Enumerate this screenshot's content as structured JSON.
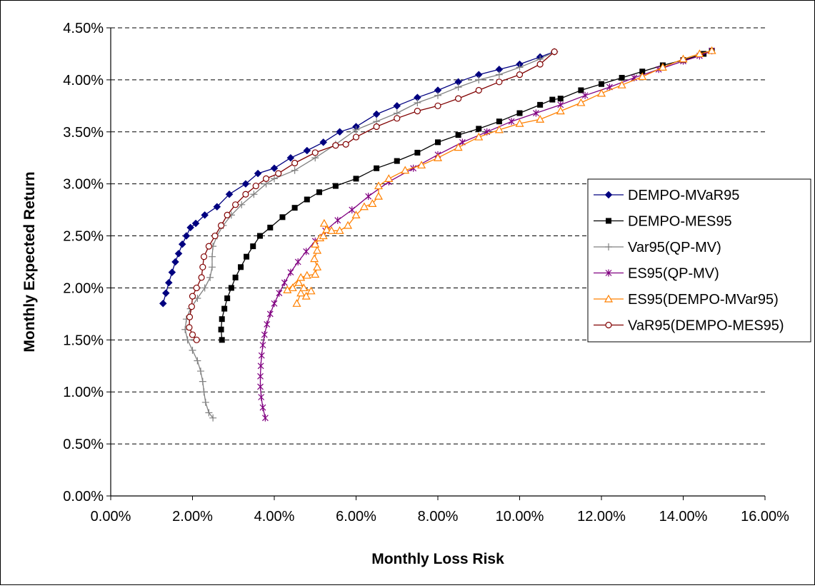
{
  "chart_data": {
    "type": "line",
    "title": "",
    "xlabel": "Monthly Loss Risk",
    "ylabel": "Monthly Expected Return",
    "xlim": [
      0,
      0.16
    ],
    "ylim": [
      0,
      0.045
    ],
    "x_ticks": [
      {
        "value": 0.0,
        "label": "0.00%"
      },
      {
        "value": 0.02,
        "label": "2.00%"
      },
      {
        "value": 0.04,
        "label": "4.00%"
      },
      {
        "value": 0.06,
        "label": "6.00%"
      },
      {
        "value": 0.08,
        "label": "8.00%"
      },
      {
        "value": 0.1,
        "label": "10.00%"
      },
      {
        "value": 0.12,
        "label": "12.00%"
      },
      {
        "value": 0.14,
        "label": "14.00%"
      },
      {
        "value": 0.16,
        "label": "16.00%"
      }
    ],
    "y_ticks": [
      {
        "value": 0.0,
        "label": "0.00%"
      },
      {
        "value": 0.005,
        "label": "0.50%"
      },
      {
        "value": 0.01,
        "label": "1.00%"
      },
      {
        "value": 0.015,
        "label": "1.50%"
      },
      {
        "value": 0.02,
        "label": "2.00%"
      },
      {
        "value": 0.025,
        "label": "2.50%"
      },
      {
        "value": 0.03,
        "label": "3.00%"
      },
      {
        "value": 0.035,
        "label": "3.50%"
      },
      {
        "value": 0.04,
        "label": "4.00%"
      },
      {
        "value": 0.045,
        "label": "4.50%"
      }
    ],
    "grid": "horizontal-dashed",
    "legend_position": "right",
    "series": [
      {
        "name": "DEMPO-MVaR95",
        "color": "#000080",
        "marker": "diamond",
        "points": [
          [
            0.0128,
            0.0185
          ],
          [
            0.0135,
            0.0195
          ],
          [
            0.0142,
            0.0205
          ],
          [
            0.015,
            0.0215
          ],
          [
            0.0158,
            0.0225
          ],
          [
            0.0166,
            0.0233
          ],
          [
            0.0175,
            0.0242
          ],
          [
            0.0185,
            0.025
          ],
          [
            0.0195,
            0.0258
          ],
          [
            0.0208,
            0.0262
          ],
          [
            0.023,
            0.027
          ],
          [
            0.026,
            0.0278
          ],
          [
            0.029,
            0.029
          ],
          [
            0.033,
            0.03
          ],
          [
            0.036,
            0.031
          ],
          [
            0.04,
            0.0315
          ],
          [
            0.044,
            0.0325
          ],
          [
            0.048,
            0.0332
          ],
          [
            0.052,
            0.034
          ],
          [
            0.056,
            0.035
          ],
          [
            0.06,
            0.0355
          ],
          [
            0.065,
            0.0367
          ],
          [
            0.07,
            0.0375
          ],
          [
            0.075,
            0.0383
          ],
          [
            0.08,
            0.039
          ],
          [
            0.085,
            0.0398
          ],
          [
            0.09,
            0.0405
          ],
          [
            0.095,
            0.041
          ],
          [
            0.1,
            0.0415
          ],
          [
            0.105,
            0.0422
          ],
          [
            0.1085,
            0.0427
          ]
        ]
      },
      {
        "name": "DEMPO-MES95",
        "color": "#000000",
        "marker": "square",
        "points": [
          [
            0.0272,
            0.015
          ],
          [
            0.027,
            0.016
          ],
          [
            0.0272,
            0.017
          ],
          [
            0.0278,
            0.018
          ],
          [
            0.0285,
            0.019
          ],
          [
            0.0295,
            0.02
          ],
          [
            0.0305,
            0.021
          ],
          [
            0.0318,
            0.022
          ],
          [
            0.0332,
            0.023
          ],
          [
            0.0348,
            0.024
          ],
          [
            0.0365,
            0.025
          ],
          [
            0.039,
            0.0258
          ],
          [
            0.042,
            0.0268
          ],
          [
            0.045,
            0.0277
          ],
          [
            0.048,
            0.0285
          ],
          [
            0.051,
            0.0292
          ],
          [
            0.055,
            0.0298
          ],
          [
            0.06,
            0.0305
          ],
          [
            0.065,
            0.0315
          ],
          [
            0.07,
            0.0322
          ],
          [
            0.075,
            0.033
          ],
          [
            0.08,
            0.034
          ],
          [
            0.085,
            0.0347
          ],
          [
            0.09,
            0.0353
          ],
          [
            0.095,
            0.036
          ],
          [
            0.1,
            0.0368
          ],
          [
            0.105,
            0.0376
          ],
          [
            0.108,
            0.0381
          ],
          [
            0.11,
            0.0382
          ],
          [
            0.115,
            0.039
          ],
          [
            0.12,
            0.0396
          ],
          [
            0.125,
            0.0402
          ],
          [
            0.13,
            0.0408
          ],
          [
            0.135,
            0.0414
          ],
          [
            0.14,
            0.0419
          ],
          [
            0.145,
            0.0425
          ],
          [
            0.147,
            0.0428
          ]
        ]
      },
      {
        "name": "Var95(QP-MV)",
        "color": "#808080",
        "marker": "plus",
        "points": [
          [
            0.025,
            0.0075
          ],
          [
            0.024,
            0.008
          ],
          [
            0.0232,
            0.009
          ],
          [
            0.0228,
            0.01
          ],
          [
            0.0225,
            0.011
          ],
          [
            0.022,
            0.012
          ],
          [
            0.0212,
            0.013
          ],
          [
            0.02,
            0.014
          ],
          [
            0.0188,
            0.015
          ],
          [
            0.0182,
            0.016
          ],
          [
            0.0185,
            0.017
          ],
          [
            0.0195,
            0.018
          ],
          [
            0.0212,
            0.019
          ],
          [
            0.023,
            0.02
          ],
          [
            0.0243,
            0.021
          ],
          [
            0.0248,
            0.022
          ],
          [
            0.0248,
            0.023
          ],
          [
            0.025,
            0.024
          ],
          [
            0.026,
            0.025
          ],
          [
            0.0275,
            0.026
          ],
          [
            0.0295,
            0.027
          ],
          [
            0.032,
            0.028
          ],
          [
            0.035,
            0.029
          ],
          [
            0.038,
            0.03
          ],
          [
            0.04,
            0.0305
          ],
          [
            0.045,
            0.0313
          ],
          [
            0.05,
            0.0325
          ],
          [
            0.055,
            0.0338
          ],
          [
            0.06,
            0.0352
          ],
          [
            0.065,
            0.036
          ],
          [
            0.07,
            0.0368
          ],
          [
            0.075,
            0.0378
          ],
          [
            0.08,
            0.0385
          ],
          [
            0.085,
            0.0393
          ],
          [
            0.09,
            0.04
          ],
          [
            0.095,
            0.0405
          ],
          [
            0.1,
            0.0412
          ],
          [
            0.105,
            0.042
          ],
          [
            0.1085,
            0.0427
          ]
        ]
      },
      {
        "name": "ES95(QP-MV)",
        "color": "#800080",
        "marker": "star",
        "points": [
          [
            0.0378,
            0.0075
          ],
          [
            0.0372,
            0.0085
          ],
          [
            0.0368,
            0.0095
          ],
          [
            0.0366,
            0.0105
          ],
          [
            0.0366,
            0.0115
          ],
          [
            0.0367,
            0.0125
          ],
          [
            0.0369,
            0.0135
          ],
          [
            0.0372,
            0.0145
          ],
          [
            0.0376,
            0.0155
          ],
          [
            0.0382,
            0.0165
          ],
          [
            0.039,
            0.0175
          ],
          [
            0.04,
            0.0185
          ],
          [
            0.0412,
            0.0195
          ],
          [
            0.0425,
            0.0205
          ],
          [
            0.044,
            0.0215
          ],
          [
            0.0458,
            0.0225
          ],
          [
            0.0478,
            0.0235
          ],
          [
            0.05,
            0.0245
          ],
          [
            0.0525,
            0.0255
          ],
          [
            0.0555,
            0.0265
          ],
          [
            0.059,
            0.0275
          ],
          [
            0.063,
            0.0288
          ],
          [
            0.068,
            0.0302
          ],
          [
            0.074,
            0.0315
          ],
          [
            0.08,
            0.0328
          ],
          [
            0.086,
            0.034
          ],
          [
            0.092,
            0.035
          ],
          [
            0.098,
            0.036
          ],
          [
            0.104,
            0.0368
          ],
          [
            0.11,
            0.0376
          ],
          [
            0.116,
            0.0385
          ],
          [
            0.122,
            0.0393
          ],
          [
            0.128,
            0.0402
          ],
          [
            0.134,
            0.041
          ],
          [
            0.14,
            0.0418
          ],
          [
            0.144,
            0.0423
          ],
          [
            0.147,
            0.0428
          ]
        ]
      },
      {
        "name": "ES95(DEMPO-MVar95)",
        "color": "#FF8000",
        "marker": "triangle-open",
        "points": [
          [
            0.0455,
            0.0185
          ],
          [
            0.0465,
            0.0195
          ],
          [
            0.0478,
            0.0192
          ],
          [
            0.049,
            0.0197
          ],
          [
            0.0472,
            0.02
          ],
          [
            0.046,
            0.0205
          ],
          [
            0.0445,
            0.02
          ],
          [
            0.0432,
            0.0198
          ],
          [
            0.0465,
            0.021
          ],
          [
            0.048,
            0.0212
          ],
          [
            0.05,
            0.0213
          ],
          [
            0.0505,
            0.022
          ],
          [
            0.0498,
            0.0228
          ],
          [
            0.0505,
            0.0236
          ],
          [
            0.05,
            0.0242
          ],
          [
            0.0512,
            0.0248
          ],
          [
            0.052,
            0.025
          ],
          [
            0.0528,
            0.0256
          ],
          [
            0.0522,
            0.0262
          ],
          [
            0.054,
            0.0255
          ],
          [
            0.056,
            0.0255
          ],
          [
            0.058,
            0.026
          ],
          [
            0.06,
            0.027
          ],
          [
            0.062,
            0.0278
          ],
          [
            0.064,
            0.0281
          ],
          [
            0.0655,
            0.0288
          ],
          [
            0.0655,
            0.0298
          ],
          [
            0.068,
            0.0305
          ],
          [
            0.072,
            0.0313
          ],
          [
            0.076,
            0.0318
          ],
          [
            0.08,
            0.0325
          ],
          [
            0.085,
            0.0335
          ],
          [
            0.09,
            0.0345
          ],
          [
            0.095,
            0.0352
          ],
          [
            0.1,
            0.0358
          ],
          [
            0.105,
            0.0362
          ],
          [
            0.11,
            0.037
          ],
          [
            0.115,
            0.0378
          ],
          [
            0.12,
            0.0387
          ],
          [
            0.125,
            0.0395
          ],
          [
            0.13,
            0.0403
          ],
          [
            0.135,
            0.0412
          ],
          [
            0.14,
            0.042
          ],
          [
            0.144,
            0.0425
          ],
          [
            0.147,
            0.0428
          ]
        ]
      },
      {
        "name": "VaR95(DEMPO-MES95)",
        "color": "#800000",
        "marker": "circle-open",
        "points": [
          [
            0.021,
            0.015
          ],
          [
            0.02,
            0.0155
          ],
          [
            0.0192,
            0.0162
          ],
          [
            0.0193,
            0.0172
          ],
          [
            0.0198,
            0.0182
          ],
          [
            0.02,
            0.0192
          ],
          [
            0.021,
            0.02
          ],
          [
            0.0222,
            0.021
          ],
          [
            0.0225,
            0.022
          ],
          [
            0.0228,
            0.023
          ],
          [
            0.024,
            0.024
          ],
          [
            0.0255,
            0.025
          ],
          [
            0.027,
            0.026
          ],
          [
            0.0285,
            0.027
          ],
          [
            0.0305,
            0.028
          ],
          [
            0.033,
            0.029
          ],
          [
            0.0355,
            0.0298
          ],
          [
            0.038,
            0.0305
          ],
          [
            0.041,
            0.031
          ],
          [
            0.045,
            0.032
          ],
          [
            0.05,
            0.033
          ],
          [
            0.055,
            0.0337
          ],
          [
            0.0575,
            0.0338
          ],
          [
            0.06,
            0.0345
          ],
          [
            0.065,
            0.0355
          ],
          [
            0.07,
            0.0363
          ],
          [
            0.075,
            0.037
          ],
          [
            0.08,
            0.0375
          ],
          [
            0.085,
            0.0382
          ],
          [
            0.09,
            0.039
          ],
          [
            0.095,
            0.0398
          ],
          [
            0.1,
            0.0405
          ],
          [
            0.105,
            0.0415
          ],
          [
            0.1085,
            0.0427
          ]
        ]
      }
    ]
  }
}
